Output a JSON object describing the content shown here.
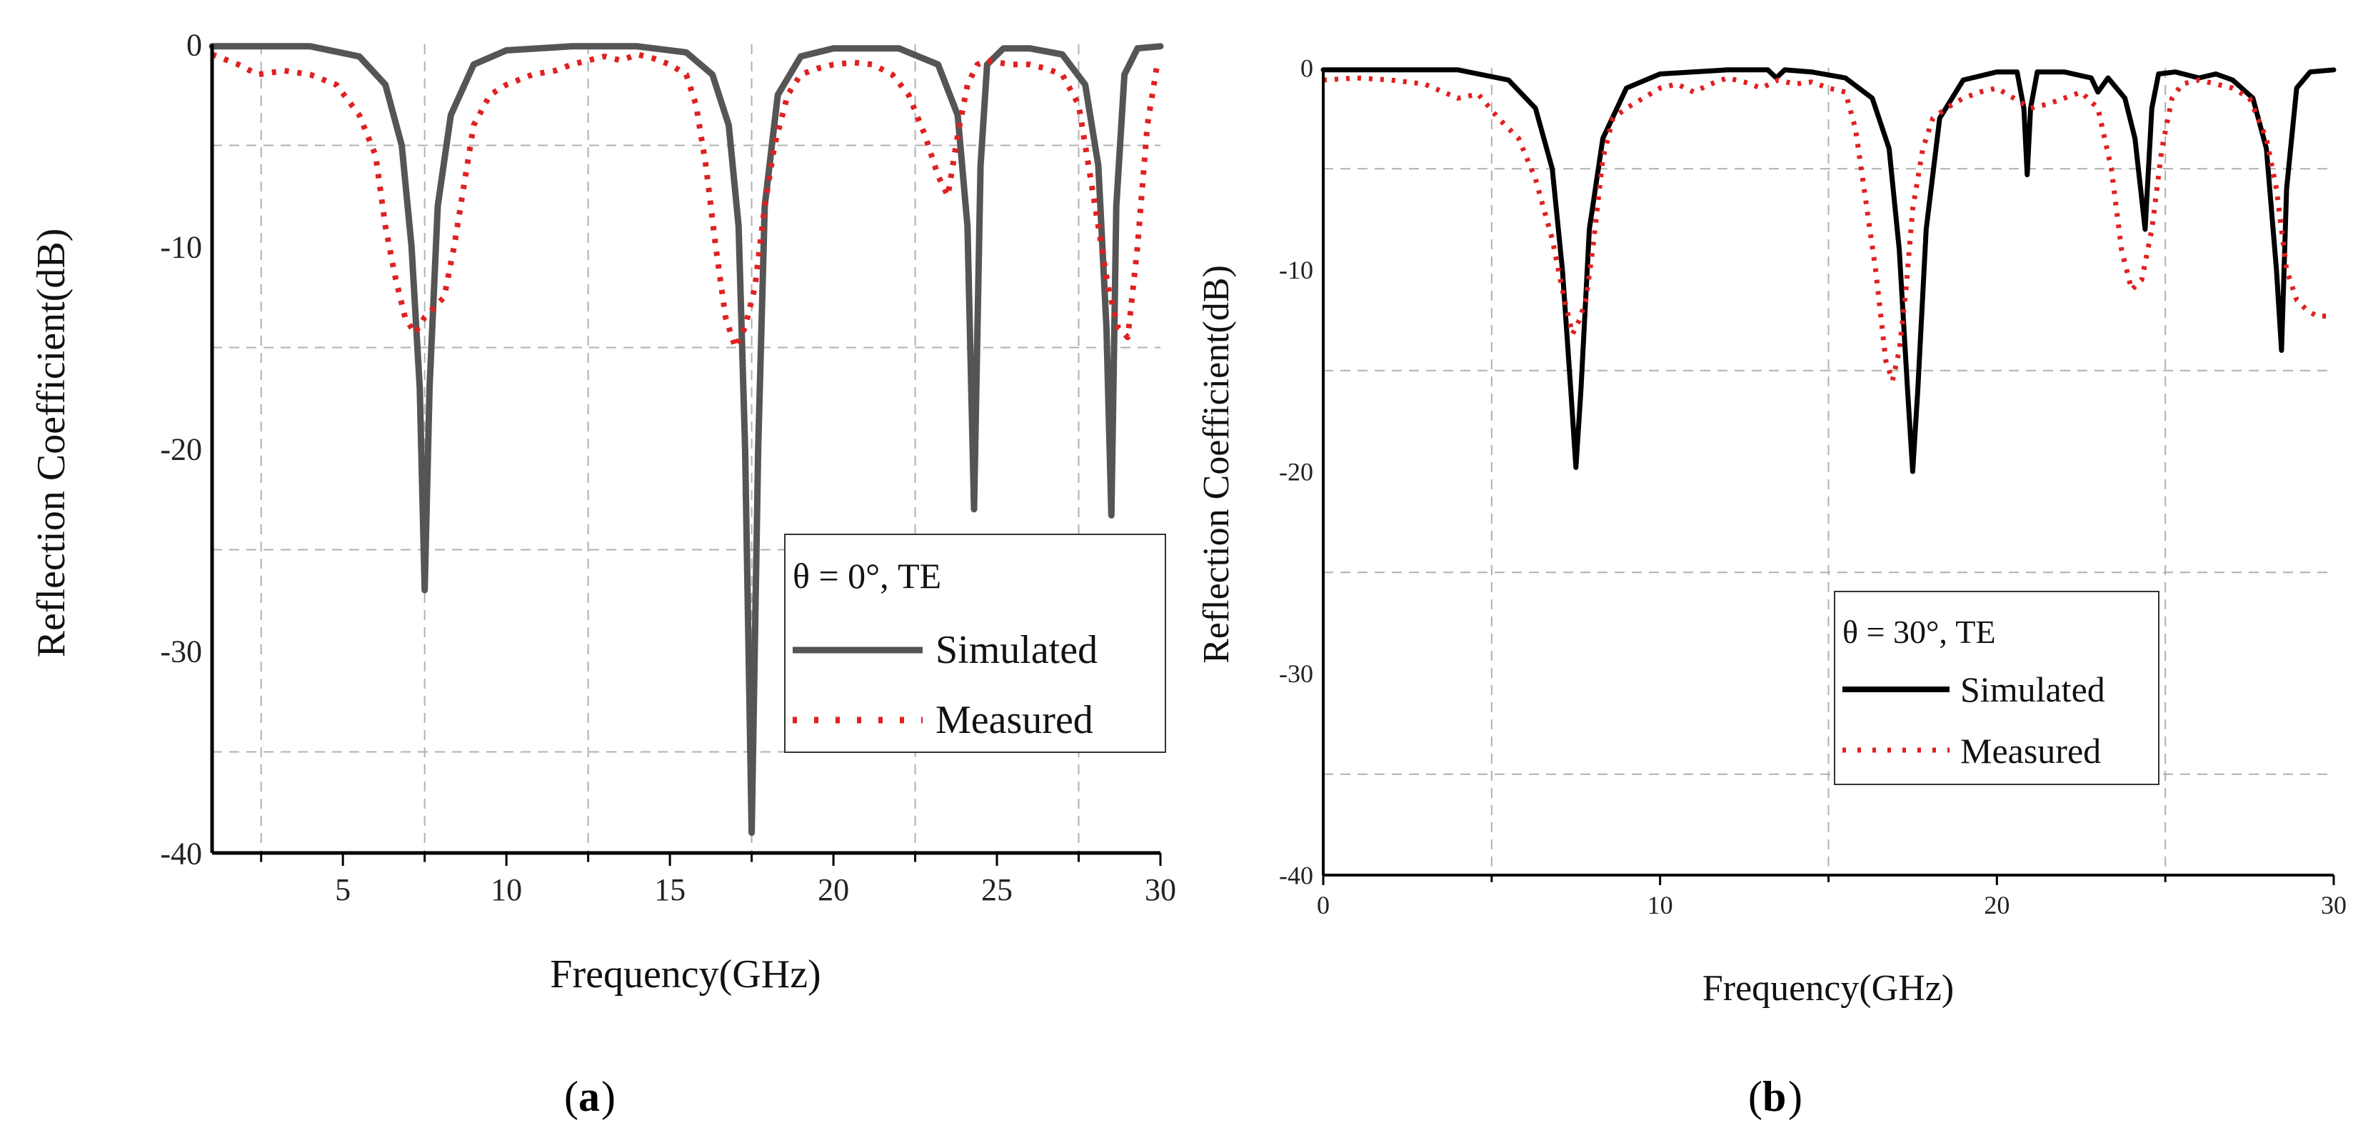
{
  "chart_data": [
    {
      "type": "line",
      "panel": "a",
      "caption_label": "a",
      "xlabel": "Frequency(GHz)",
      "ylabel": "Reflection Coefficient(dB)",
      "xlim": [
        1,
        30
      ],
      "ylim": [
        -40,
        0
      ],
      "xticks": [
        5,
        10,
        15,
        20,
        25,
        30
      ],
      "yticks": [
        0,
        -10,
        -20,
        -30,
        -40
      ],
      "grid_x": [
        2.5,
        7.5,
        12.5,
        17.5,
        22.5,
        27.5
      ],
      "grid_y": [
        -5,
        -15,
        -25,
        -35
      ],
      "legend": {
        "title": "θ = 0°, TE",
        "entries": [
          "Simulated",
          "Measured"
        ],
        "placement": "lower-right"
      },
      "series": [
        {
          "name": "Simulated",
          "style": "solid",
          "color": "#555555",
          "x": [
            1.0,
            4.0,
            5.5,
            6.3,
            6.8,
            7.1,
            7.35,
            7.5,
            7.65,
            7.9,
            8.3,
            9.0,
            10.0,
            12.0,
            14.0,
            15.5,
            16.3,
            16.8,
            17.1,
            17.3,
            17.5,
            17.7,
            17.9,
            18.3,
            19.0,
            20.0,
            22.0,
            23.2,
            23.8,
            24.1,
            24.3,
            24.5,
            24.7,
            25.2,
            26.0,
            27.0,
            27.7,
            28.1,
            28.35,
            28.5,
            28.65,
            28.9,
            29.3,
            30.0
          ],
          "y": [
            -0.1,
            -0.1,
            -0.6,
            -2.0,
            -5.0,
            -10.0,
            -17.0,
            -27.0,
            -17.0,
            -8.0,
            -3.5,
            -1.0,
            -0.3,
            -0.1,
            -0.1,
            -0.4,
            -1.5,
            -4.0,
            -9.0,
            -20.0,
            -39.0,
            -20.0,
            -8.0,
            -2.5,
            -0.6,
            -0.2,
            -0.2,
            -1.0,
            -3.5,
            -9.0,
            -23.0,
            -6.0,
            -1.0,
            -0.2,
            -0.2,
            -0.5,
            -2.0,
            -6.0,
            -14.0,
            -23.3,
            -8.0,
            -1.5,
            -0.2,
            -0.1
          ]
        },
        {
          "name": "Measured",
          "style": "dotted",
          "color": "#e02020",
          "x": [
            1.0,
            1.8,
            2.4,
            3.2,
            4.0,
            4.8,
            5.5,
            6.0,
            6.3,
            6.6,
            6.9,
            7.2,
            7.5,
            7.8,
            8.1,
            8.4,
            8.7,
            9.0,
            9.5,
            10.0,
            10.8,
            11.5,
            12.0,
            12.5,
            13.0,
            13.5,
            14.0,
            14.5,
            15.0,
            15.5,
            15.8,
            16.1,
            16.4,
            16.7,
            17.0,
            17.3,
            17.6,
            17.9,
            18.2,
            18.6,
            19.0,
            19.5,
            20.0,
            20.6,
            21.2,
            21.8,
            22.3,
            22.8,
            23.2,
            23.5,
            23.8,
            24.1,
            24.4,
            24.7,
            25.0,
            25.5,
            26.0,
            26.5,
            27.0,
            27.5,
            27.8,
            28.1,
            28.4,
            28.7,
            29.0,
            29.3,
            29.6,
            29.9
          ],
          "y": [
            -0.5,
            -1.0,
            -1.5,
            -1.3,
            -1.5,
            -2.0,
            -3.5,
            -5.5,
            -9.0,
            -11.5,
            -13.5,
            -14.3,
            -13.5,
            -13.0,
            -12.5,
            -10.0,
            -7.0,
            -4.0,
            -2.5,
            -2.0,
            -1.5,
            -1.3,
            -1.0,
            -0.8,
            -0.6,
            -0.8,
            -0.5,
            -0.7,
            -1.0,
            -1.5,
            -3.0,
            -6.0,
            -10.0,
            -13.5,
            -15.0,
            -14.0,
            -12.0,
            -8.0,
            -5.0,
            -2.5,
            -1.5,
            -1.2,
            -1.0,
            -0.9,
            -1.0,
            -1.5,
            -2.5,
            -4.5,
            -6.5,
            -7.5,
            -4.5,
            -2.0,
            -1.0,
            -0.8,
            -0.9,
            -1.0,
            -1.0,
            -1.2,
            -1.5,
            -3.0,
            -6.0,
            -9.0,
            -12.0,
            -14.0,
            -14.5,
            -10.0,
            -4.0,
            -1.0
          ]
        }
      ]
    },
    {
      "type": "line",
      "panel": "b",
      "caption_label": "b",
      "xlabel": "Frequency(GHz)",
      "ylabel": "Reflection Coefficient(dB)",
      "xlim": [
        0,
        30
      ],
      "ylim": [
        -40,
        0
      ],
      "xticks": [
        0,
        10,
        20,
        30
      ],
      "yticks": [
        0,
        -10,
        -20,
        -30,
        -40
      ],
      "grid_x": [
        5,
        15,
        25
      ],
      "grid_y": [
        -5,
        -15,
        -25,
        -35
      ],
      "legend": {
        "title": "θ = 30°, TE",
        "entries": [
          "Simulated",
          "Measured"
        ],
        "placement": "middle-right"
      },
      "series": [
        {
          "name": "Simulated",
          "style": "solid",
          "color": "#000000",
          "x": [
            0.0,
            4.0,
            5.5,
            6.3,
            6.8,
            7.1,
            7.35,
            7.5,
            7.65,
            7.9,
            8.3,
            9.0,
            10.0,
            12.0,
            13.2,
            13.45,
            13.7,
            14.5,
            15.5,
            16.3,
            16.8,
            17.1,
            17.35,
            17.5,
            17.65,
            17.9,
            18.3,
            19.0,
            20.0,
            20.6,
            20.8,
            20.9,
            21.0,
            21.2,
            22.0,
            22.8,
            23.0,
            23.3,
            23.8,
            24.1,
            24.4,
            24.6,
            24.8,
            25.3,
            26.0,
            26.5,
            27.0,
            27.6,
            28.0,
            28.3,
            28.45,
            28.6,
            28.9,
            29.3,
            30.0
          ],
          "y": [
            -0.1,
            -0.1,
            -0.6,
            -2.0,
            -5.0,
            -10.0,
            -16.0,
            -19.8,
            -16.0,
            -8.0,
            -3.5,
            -1.0,
            -0.3,
            -0.1,
            -0.1,
            -0.5,
            -0.1,
            -0.2,
            -0.5,
            -1.5,
            -4.0,
            -9.0,
            -16.0,
            -20.0,
            -16.0,
            -8.0,
            -2.5,
            -0.6,
            -0.2,
            -0.2,
            -2.0,
            -5.3,
            -2.0,
            -0.2,
            -0.2,
            -0.5,
            -1.2,
            -0.5,
            -1.5,
            -3.5,
            -8.0,
            -2.0,
            -0.3,
            -0.2,
            -0.5,
            -0.3,
            -0.6,
            -1.5,
            -4.0,
            -10.0,
            -14.0,
            -6.0,
            -1.0,
            -0.2,
            -0.1
          ]
        },
        {
          "name": "Measured",
          "style": "dotted",
          "color": "#e02020",
          "x": [
            0.0,
            1.0,
            2.0,
            3.0,
            4.0,
            4.6,
            5.2,
            5.8,
            6.3,
            6.8,
            7.1,
            7.4,
            7.6,
            7.8,
            8.0,
            8.3,
            8.6,
            9.0,
            9.5,
            10.0,
            10.5,
            11.0,
            11.5,
            12.0,
            12.5,
            13.0,
            13.5,
            14.0,
            14.5,
            15.0,
            15.5,
            15.8,
            16.1,
            16.4,
            16.7,
            16.9,
            17.1,
            17.3,
            17.5,
            17.8,
            18.1,
            18.5,
            19.0,
            19.5,
            20.0,
            20.5,
            21.0,
            21.5,
            22.0,
            22.5,
            23.0,
            23.4,
            23.7,
            24.0,
            24.3,
            24.6,
            24.9,
            25.2,
            25.5,
            26.0,
            26.5,
            27.0,
            27.5,
            28.0,
            28.3,
            28.6,
            28.9,
            29.2,
            29.5,
            29.8
          ],
          "y": [
            -0.6,
            -0.5,
            -0.6,
            -0.8,
            -1.5,
            -1.3,
            -2.5,
            -3.5,
            -5.5,
            -8.5,
            -11.0,
            -13.2,
            -12.5,
            -11.5,
            -9.0,
            -4.5,
            -2.5,
            -2.0,
            -1.5,
            -1.0,
            -0.8,
            -1.2,
            -0.8,
            -0.5,
            -0.7,
            -1.0,
            -0.6,
            -0.8,
            -0.7,
            -1.0,
            -1.2,
            -3.0,
            -6.5,
            -10.0,
            -14.5,
            -15.5,
            -14.0,
            -11.0,
            -7.0,
            -4.0,
            -2.5,
            -2.0,
            -1.5,
            -1.2,
            -1.0,
            -1.5,
            -2.0,
            -1.8,
            -1.5,
            -1.2,
            -2.0,
            -5.0,
            -9.0,
            -11.0,
            -10.5,
            -8.0,
            -4.0,
            -1.5,
            -0.8,
            -0.6,
            -0.8,
            -1.0,
            -1.5,
            -3.5,
            -6.0,
            -10.0,
            -11.5,
            -12.0,
            -12.3,
            -12.3
          ]
        }
      ]
    }
  ]
}
